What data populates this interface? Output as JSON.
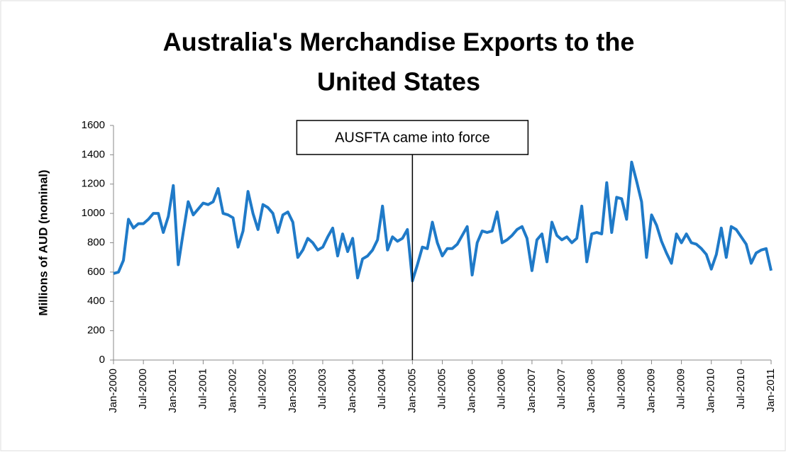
{
  "chart_data": {
    "type": "line",
    "title": "Australia's Merchandise Exports to the United States",
    "title_lines": [
      "Australia's Merchandise Exports to the",
      "United States"
    ],
    "y_label": "Millions of AUD (nominal)",
    "categories": [
      "Jan-2000",
      null,
      null,
      null,
      null,
      null,
      "Jul-2000",
      null,
      null,
      null,
      null,
      null,
      "Jan-2001",
      null,
      null,
      null,
      null,
      null,
      "Jul-2001",
      null,
      null,
      null,
      null,
      null,
      "Jan-2002",
      null,
      null,
      null,
      null,
      null,
      "Jul-2002",
      null,
      null,
      null,
      null,
      null,
      "Jan-2003",
      null,
      null,
      null,
      null,
      null,
      "Jul-2003",
      null,
      null,
      null,
      null,
      null,
      "Jan-2004",
      null,
      null,
      null,
      null,
      null,
      "Jul-2004",
      null,
      null,
      null,
      null,
      null,
      "Jan-2005",
      null,
      null,
      null,
      null,
      null,
      "Jul-2005",
      null,
      null,
      null,
      null,
      null,
      "Jan-2006",
      null,
      null,
      null,
      null,
      null,
      "Jul-2006",
      null,
      null,
      null,
      null,
      null,
      "Jan-2007",
      null,
      null,
      null,
      null,
      null,
      "Jul-2007",
      null,
      null,
      null,
      null,
      null,
      "Jan-2008",
      null,
      null,
      null,
      null,
      null,
      "Jul-2008",
      null,
      null,
      null,
      null,
      null,
      "Jan-2009",
      null,
      null,
      null,
      null,
      null,
      "Jul-2009",
      null,
      null,
      null,
      null,
      null,
      "Jan-2010",
      null,
      null,
      null,
      null,
      null,
      "Jul-2010",
      null,
      null,
      null,
      null,
      null,
      "Jan-2011"
    ],
    "series": [
      {
        "name": "Merchandise exports",
        "color": "#1f7ac8",
        "values": [
          590,
          600,
          680,
          960,
          900,
          930,
          930,
          960,
          1000,
          1000,
          870,
          980,
          1190,
          650,
          870,
          1080,
          990,
          1030,
          1070,
          1060,
          1080,
          1170,
          1000,
          990,
          970,
          770,
          880,
          1150,
          1000,
          890,
          1060,
          1040,
          1000,
          870,
          990,
          1010,
          940,
          700,
          750,
          830,
          800,
          750,
          770,
          840,
          900,
          710,
          860,
          740,
          830,
          560,
          690,
          710,
          750,
          820,
          1050,
          750,
          840,
          810,
          830,
          890,
          540,
          650,
          770,
          760,
          940,
          800,
          710,
          760,
          760,
          790,
          850,
          910,
          580,
          800,
          880,
          870,
          880,
          1010,
          800,
          820,
          850,
          890,
          910,
          830,
          610,
          820,
          860,
          670,
          940,
          850,
          820,
          840,
          800,
          830,
          1050,
          670,
          860,
          870,
          860,
          1210,
          870,
          1110,
          1100,
          960,
          1350,
          1220,
          1080,
          700,
          990,
          920,
          810,
          730,
          660,
          860,
          800,
          860,
          800,
          790,
          760,
          720,
          620,
          720,
          900,
          700,
          910,
          890,
          840,
          790,
          660,
          730,
          750,
          760,
          610
        ]
      }
    ],
    "ylim": [
      0,
      1600
    ],
    "yticks": [
      0,
      200,
      400,
      600,
      800,
      1000,
      1200,
      1400,
      1600
    ],
    "annotation": {
      "text": "AUSFTA came into force",
      "at": "Jan-2005"
    },
    "grid": false
  }
}
